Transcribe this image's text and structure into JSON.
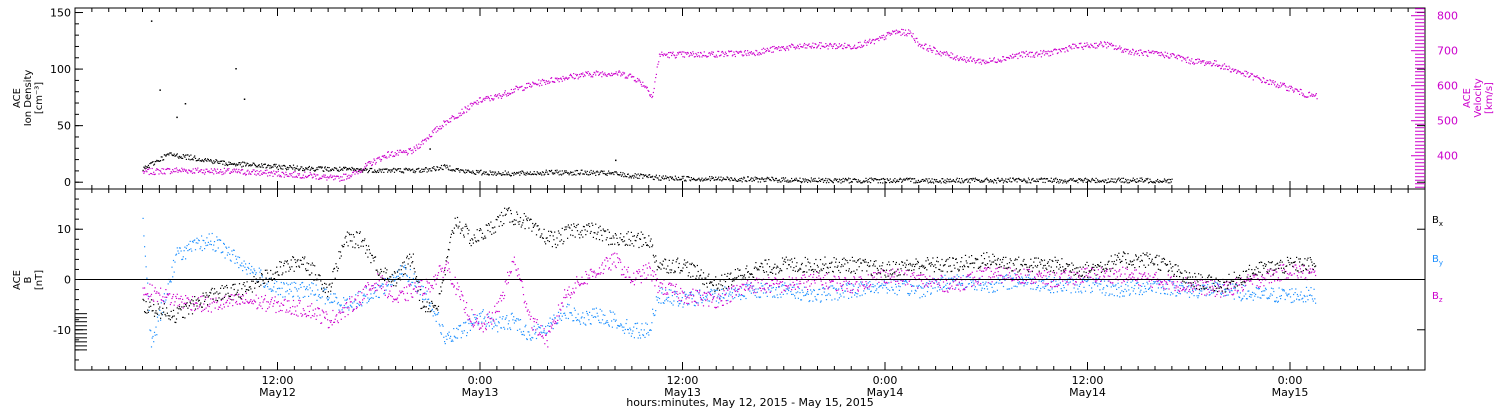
{
  "chart_data": [
    {
      "type": "scatter",
      "panel": "top",
      "ylabel_left": [
        "ACE",
        "Ion Density",
        "[cm⁻³]"
      ],
      "ylabel_right": [
        "ACE",
        "Velocity",
        "[km/s]"
      ],
      "ylim_left": [
        -6,
        154
      ],
      "ylim_right": [
        305,
        822
      ],
      "yticks_left": [
        "0",
        "50",
        "100",
        "150"
      ],
      "yticks_right": [
        "400",
        "500",
        "600",
        "700",
        "800"
      ],
      "series": [
        {
          "axis": "left",
          "color": "#000000",
          "points": [
            [
              4.0,
              12
            ],
            [
              5.5,
              25
            ],
            [
              7.0,
              22
            ],
            [
              9.0,
              17
            ],
            [
              12.0,
              14
            ],
            [
              15.0,
              12
            ],
            [
              18.0,
              11
            ],
            [
              20.5,
              11
            ],
            [
              22.0,
              14
            ],
            [
              23.0,
              10
            ],
            [
              24.0,
              9
            ],
            [
              26.0,
              8
            ],
            [
              28.0,
              9
            ],
            [
              30.0,
              9
            ],
            [
              32.0,
              8
            ],
            [
              33.0,
              6
            ],
            [
              35.0,
              4
            ],
            [
              40.0,
              3
            ],
            [
              44.0,
              2
            ],
            [
              48.0,
              2
            ],
            [
              53.0,
              2
            ],
            [
              58.0,
              2
            ],
            [
              62.0,
              2
            ],
            [
              65.0,
              2
            ]
          ],
          "outliers": [
            [
              5.0,
              82
            ],
            [
              6.5,
              70
            ],
            [
              9.5,
              101
            ],
            [
              10.0,
              74
            ],
            [
              4.5,
              143
            ],
            [
              6.0,
              58
            ],
            [
              21.0,
              30
            ],
            [
              32.0,
              20
            ]
          ]
        },
        {
          "axis": "right",
          "color": "#cc00cc",
          "points": [
            [
              4.0,
              355
            ],
            [
              6.0,
              360
            ],
            [
              8.0,
              358
            ],
            [
              10.0,
              355
            ],
            [
              12.0,
              350
            ],
            [
              14.0,
              345
            ],
            [
              15.5,
              335
            ],
            [
              16.5,
              350
            ],
            [
              17.5,
              380
            ],
            [
              18.5,
              405
            ],
            [
              19.5,
              410
            ],
            [
              20.0,
              415
            ],
            [
              21.0,
              460
            ],
            [
              22.0,
              500
            ],
            [
              23.0,
              530
            ],
            [
              24.0,
              560
            ],
            [
              25.0,
              570
            ],
            [
              26.0,
              590
            ],
            [
              27.5,
              610
            ],
            [
              29.0,
              625
            ],
            [
              30.5,
              635
            ],
            [
              32.0,
              638
            ],
            [
              33.0,
              628
            ],
            [
              33.8,
              600
            ],
            [
              34.2,
              570
            ],
            [
              34.6,
              690
            ],
            [
              36.0,
              690
            ],
            [
              38.0,
              692
            ],
            [
              40.0,
              695
            ],
            [
              42.0,
              710
            ],
            [
              44.0,
              716
            ],
            [
              46.0,
              714
            ],
            [
              47.5,
              730
            ],
            [
              48.5,
              755
            ],
            [
              49.5,
              752
            ],
            [
              50.0,
              720
            ],
            [
              51.0,
              700
            ],
            [
              52.0,
              685
            ],
            [
              53.0,
              675
            ],
            [
              54.0,
              670
            ],
            [
              55.0,
              680
            ],
            [
              56.0,
              690
            ],
            [
              57.0,
              692
            ],
            [
              58.0,
              697
            ],
            [
              59.0,
              712
            ],
            [
              60.0,
              716
            ],
            [
              61.0,
              720
            ],
            [
              62.0,
              705
            ],
            [
              63.0,
              696
            ],
            [
              64.0,
              692
            ],
            [
              65.0,
              688
            ],
            [
              66.0,
              673
            ],
            [
              67.5,
              665
            ],
            [
              69.0,
              640
            ],
            [
              70.5,
              615
            ],
            [
              72.0,
              594
            ],
            [
              73.0,
              575
            ],
            [
              73.6,
              570
            ]
          ]
        }
      ]
    },
    {
      "type": "scatter",
      "panel": "bottom",
      "ylabel_left": [
        "ACE",
        "B",
        "[nT]"
      ],
      "ylim": [
        -18,
        18
      ],
      "yticks": [
        "-10",
        "0",
        "10"
      ],
      "legend_position": "right",
      "series": [
        {
          "name": "Bx",
          "name_main": "B",
          "name_sub": "x",
          "color": "#000000",
          "points": [
            [
              4.0,
              -5
            ],
            [
              6.0,
              -7
            ],
            [
              8.0,
              -3
            ],
            [
              10.0,
              -2
            ],
            [
              12.0,
              2
            ],
            [
              13.5,
              4
            ],
            [
              15.0,
              -2
            ],
            [
              16.0,
              8
            ],
            [
              17.0,
              8
            ],
            [
              18.0,
              2
            ],
            [
              19.0,
              0
            ],
            [
              20.0,
              5
            ],
            [
              20.5,
              -5
            ],
            [
              21.5,
              -5
            ],
            [
              22.5,
              12
            ],
            [
              23.5,
              8
            ],
            [
              24.5,
              10
            ],
            [
              25.5,
              13
            ],
            [
              26.5,
              12
            ],
            [
              27.5,
              9
            ],
            [
              28.5,
              8
            ],
            [
              29.5,
              10
            ],
            [
              30.5,
              10
            ],
            [
              32.0,
              8
            ],
            [
              33.0,
              8
            ],
            [
              34.0,
              8
            ],
            [
              34.5,
              3
            ],
            [
              36.0,
              3
            ],
            [
              38.0,
              -1
            ],
            [
              40.0,
              2
            ],
            [
              42.0,
              3
            ],
            [
              44.0,
              3
            ],
            [
              46.0,
              3
            ],
            [
              48.0,
              2
            ],
            [
              50.0,
              3
            ],
            [
              52.0,
              3
            ],
            [
              54.0,
              4
            ],
            [
              56.0,
              3
            ],
            [
              58.0,
              3
            ],
            [
              60.0,
              2
            ],
            [
              62.0,
              4
            ],
            [
              64.0,
              4
            ],
            [
              66.0,
              0
            ],
            [
              68.0,
              -1
            ],
            [
              70.0,
              2
            ],
            [
              72.0,
              3
            ],
            [
              73.5,
              3
            ]
          ]
        },
        {
          "name": "By",
          "name_main": "B",
          "name_sub": "y",
          "color": "#1e90ff",
          "points": [
            [
              4.0,
              11
            ],
            [
              4.5,
              -13
            ],
            [
              6.0,
              5
            ],
            [
              8.0,
              8
            ],
            [
              10.0,
              3
            ],
            [
              12.0,
              -2
            ],
            [
              14.0,
              -2
            ],
            [
              16.0,
              -5
            ],
            [
              18.0,
              -2
            ],
            [
              19.5,
              2
            ],
            [
              21.0,
              -4
            ],
            [
              22.0,
              -12
            ],
            [
              23.0,
              -10
            ],
            [
              24.0,
              -7
            ],
            [
              25.0,
              -9
            ],
            [
              26.0,
              -8
            ],
            [
              27.0,
              -11
            ],
            [
              28.0,
              -9
            ],
            [
              29.0,
              -6
            ],
            [
              30.0,
              -8
            ],
            [
              31.0,
              -7
            ],
            [
              32.0,
              -8
            ],
            [
              33.0,
              -10
            ],
            [
              34.0,
              -10
            ],
            [
              34.5,
              -3
            ],
            [
              36.0,
              -4
            ],
            [
              38.0,
              -3
            ],
            [
              40.0,
              -2
            ],
            [
              42.0,
              -2
            ],
            [
              44.0,
              -3
            ],
            [
              46.0,
              -2
            ],
            [
              48.0,
              -1
            ],
            [
              50.0,
              -2
            ],
            [
              52.0,
              0
            ],
            [
              54.0,
              -1
            ],
            [
              56.0,
              0
            ],
            [
              58.0,
              -1
            ],
            [
              60.0,
              -1
            ],
            [
              62.0,
              -2
            ],
            [
              64.0,
              -1
            ],
            [
              66.0,
              -2
            ],
            [
              68.0,
              -2
            ],
            [
              70.0,
              -3
            ],
            [
              72.0,
              -3
            ],
            [
              73.5,
              -3
            ]
          ]
        },
        {
          "name": "Bz",
          "name_main": "B",
          "name_sub": "z",
          "color": "#cc00cc",
          "points": [
            [
              4.0,
              -2
            ],
            [
              6.0,
              -4
            ],
            [
              8.0,
              -5
            ],
            [
              10.0,
              -4
            ],
            [
              12.0,
              -5
            ],
            [
              14.0,
              -6
            ],
            [
              15.0,
              -8
            ],
            [
              16.0,
              -6
            ],
            [
              17.0,
              -3
            ],
            [
              18.0,
              0
            ],
            [
              19.0,
              -4
            ],
            [
              20.0,
              -2
            ],
            [
              21.0,
              -1
            ],
            [
              22.0,
              3
            ],
            [
              23.0,
              -5
            ],
            [
              24.0,
              -10
            ],
            [
              25.0,
              -6
            ],
            [
              26.0,
              4
            ],
            [
              27.0,
              -8
            ],
            [
              28.0,
              -12
            ],
            [
              29.0,
              -3
            ],
            [
              30.0,
              0
            ],
            [
              31.0,
              2
            ],
            [
              32.0,
              4
            ],
            [
              33.0,
              0
            ],
            [
              34.0,
              2
            ],
            [
              34.5,
              -1
            ],
            [
              36.0,
              -3
            ],
            [
              38.0,
              -4
            ],
            [
              40.0,
              -1
            ],
            [
              42.0,
              -1
            ],
            [
              44.0,
              0
            ],
            [
              46.0,
              -1
            ],
            [
              48.0,
              1
            ],
            [
              50.0,
              0
            ],
            [
              52.0,
              -1
            ],
            [
              54.0,
              1
            ],
            [
              56.0,
              1
            ],
            [
              58.0,
              0
            ],
            [
              60.0,
              1
            ],
            [
              62.0,
              1
            ],
            [
              64.0,
              0
            ],
            [
              66.0,
              -1
            ],
            [
              68.0,
              -2
            ],
            [
              70.0,
              0
            ],
            [
              72.0,
              2
            ],
            [
              73.5,
              1
            ]
          ]
        }
      ]
    }
  ],
  "x_axis": {
    "label": "hours:minutes, May 12, 2015 - May 15, 2015",
    "xlim": [
      0,
      80
    ],
    "ticks": [
      {
        "x": 12,
        "line1": "12:00",
        "line2": "May12"
      },
      {
        "x": 24,
        "line1": "0:00",
        "line2": "May13"
      },
      {
        "x": 36,
        "line1": "12:00",
        "line2": "May13"
      },
      {
        "x": 48,
        "line1": "0:00",
        "line2": "May14"
      },
      {
        "x": 60,
        "line1": "12:00",
        "line2": "May14"
      },
      {
        "x": 72,
        "line1": "0:00",
        "line2": "May15"
      }
    ]
  }
}
